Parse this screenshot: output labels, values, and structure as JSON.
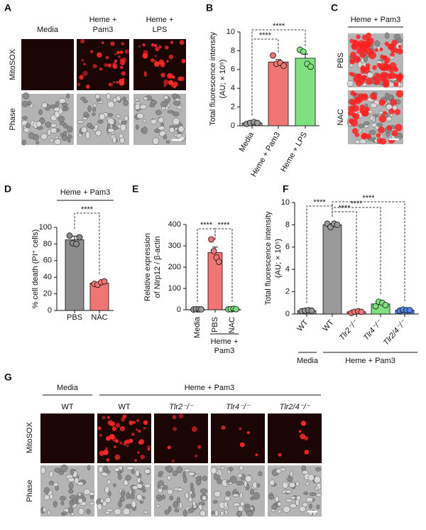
{
  "panel_a": {
    "letter": "A",
    "columns": [
      [
        "Media"
      ],
      [
        "Heme +",
        "Pam3"
      ],
      [
        "Heme +",
        "LPS"
      ]
    ],
    "rows": [
      "MitoSOX",
      "Phase"
    ]
  },
  "panel_c": {
    "letter": "C",
    "header": "Heme + Pam3",
    "rows": [
      "PBS",
      "NAC"
    ]
  },
  "panel_g": {
    "letter": "G",
    "groups": [
      "Media",
      "Heme + Pam3"
    ],
    "columns": [
      "WT",
      "WT",
      "Tlr2⁻/⁻",
      "Tlr4⁻/⁻",
      "Tlr2/4⁻/⁻"
    ],
    "rows": [
      "MitoSOX",
      "Phase"
    ]
  },
  "chart_data": [
    {
      "type": "bar",
      "letter": "B",
      "ylabel": [
        "Total fluorescence intensity",
        "(AU; × 10⁵)"
      ],
      "categories": [
        "Media",
        "Heme + Pam3",
        "Heme + LPS"
      ],
      "values": [
        0.3,
        6.8,
        7.2
      ],
      "errors": [
        0.05,
        0.25,
        0.45
      ],
      "points": [
        [
          0.2,
          0.3,
          0.4,
          0.3
        ],
        [
          7.5,
          6.6,
          6.7,
          6.4
        ],
        [
          8.1,
          7.9,
          6.6,
          6.3
        ]
      ],
      "colors": [
        "#999999",
        "#f07575",
        "#7fe07f"
      ],
      "ylim": [
        0,
        10
      ],
      "yticks": [
        0,
        2,
        4,
        6,
        8,
        10
      ],
      "annotations": [
        "****",
        "****"
      ]
    },
    {
      "type": "bar",
      "letter": "D",
      "header": "Heme + Pam3",
      "ylabel": [
        "% cell death (PI⁺ cells)"
      ],
      "categories": [
        "PBS",
        "NAC"
      ],
      "values": [
        85,
        33
      ],
      "errors": [
        4.5,
        1.2
      ],
      "points": [
        [
          90,
          81,
          80,
          88
        ],
        [
          32,
          31,
          34,
          35
        ]
      ],
      "colors": [
        "#8c8c8c",
        "#f07575"
      ],
      "ylim": [
        0,
        100
      ],
      "yticks": [
        0,
        20,
        40,
        60,
        80,
        100
      ],
      "annotations": [
        "****"
      ]
    },
    {
      "type": "bar",
      "letter": "E",
      "ylabel": [
        "Relative expression",
        "of Nlrp12 / β-actin"
      ],
      "group": [
        "Heme +",
        "Pam3"
      ],
      "categories": [
        "Media",
        "PBS",
        "NAC"
      ],
      "values": [
        2,
        268,
        3
      ],
      "errors": [
        1,
        26,
        1
      ],
      "points": [
        [
          1,
          3,
          2,
          2
        ],
        [
          330,
          275,
          245,
          225
        ],
        [
          2,
          3,
          4,
          3
        ]
      ],
      "colors": [
        "#999999",
        "#f07575",
        "#7fe07f"
      ],
      "ylim": [
        0,
        400
      ],
      "yticks": [
        0,
        100,
        200,
        300,
        400
      ],
      "annotations": [
        "****",
        "****"
      ]
    },
    {
      "type": "bar",
      "letter": "F",
      "ylabel": [
        "Total fluorescence intensity",
        "(AU; × 10⁵)"
      ],
      "groups": [
        "Media",
        "Heme + Pam3"
      ],
      "categories": [
        "WT",
        "WT",
        "Tlr2⁻/⁻",
        "Tlr4⁻/⁻",
        "Tlr2/4⁻/⁻"
      ],
      "values": [
        0.3,
        8,
        0.2,
        0.9,
        0.35
      ],
      "errors": [
        0.05,
        0.1,
        0.05,
        0.15,
        0.05
      ],
      "points": [
        [
          0.25,
          0.3,
          0.35,
          0.3
        ],
        [
          8.1,
          7.8,
          8.1,
          8.0
        ],
        [
          0.1,
          0.2,
          0.25,
          0.2
        ],
        [
          0.7,
          1.1,
          1.0,
          0.8
        ],
        [
          0.3,
          0.4,
          0.35,
          0.35
        ]
      ],
      "colors": [
        "#999999",
        "#999999",
        "#f07575",
        "#7fe07f",
        "#4f86e8"
      ],
      "ylim": [
        0,
        10
      ],
      "yticks": [
        0,
        2,
        4,
        6,
        8,
        10
      ],
      "annotations": [
        "****",
        "****",
        "****",
        "****"
      ]
    }
  ]
}
